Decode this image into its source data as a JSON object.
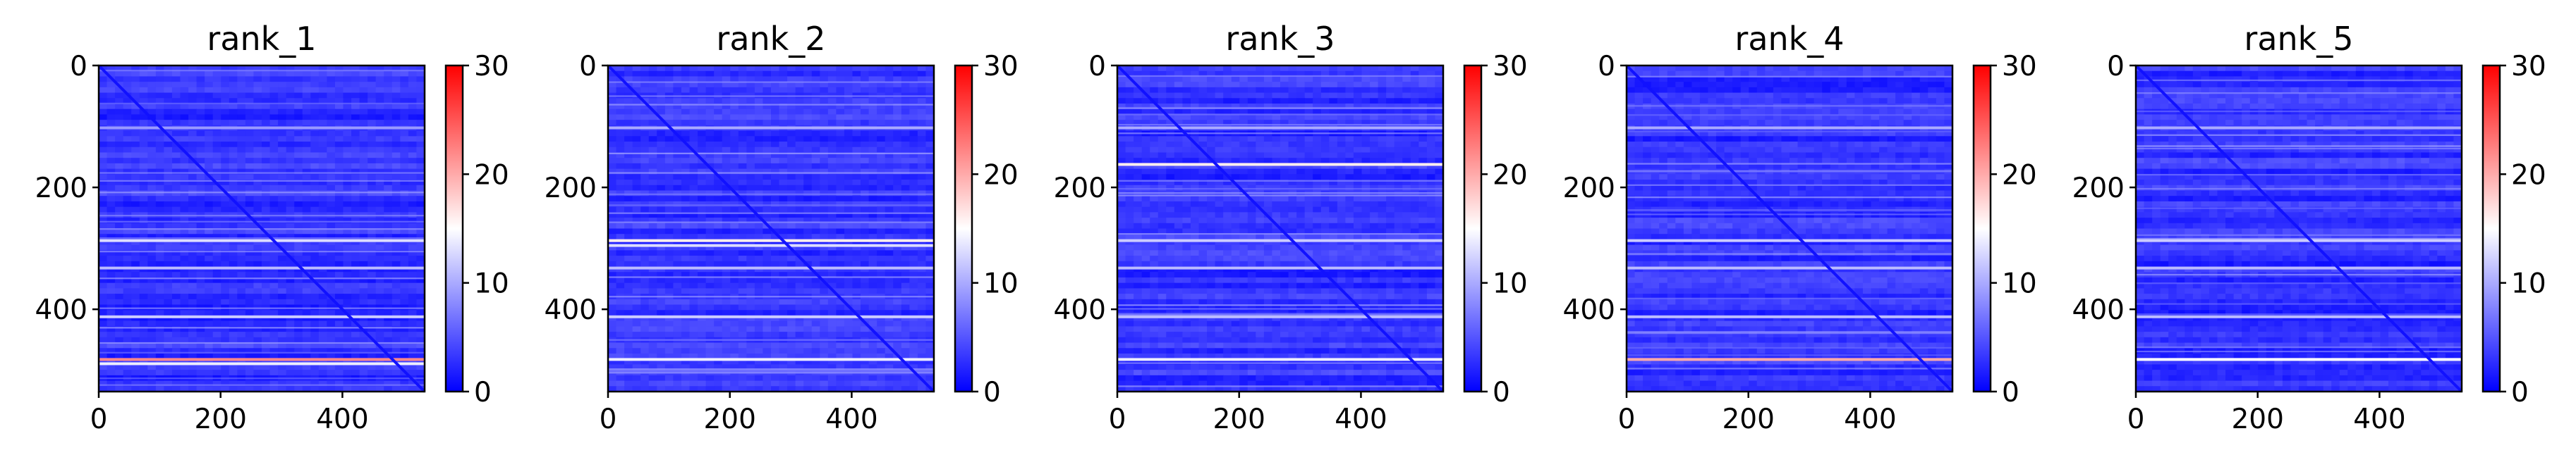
{
  "chart_data": [
    {
      "type": "heatmap",
      "title": "rank_1",
      "x_ticks": [
        0,
        200,
        400
      ],
      "y_ticks": [
        0,
        200,
        400
      ],
      "xlim": [
        0,
        535
      ],
      "ylim": [
        535,
        0
      ],
      "colorbar": {
        "ticks": [
          0,
          10,
          20,
          30
        ],
        "range": [
          0,
          30
        ],
        "colormap": "bwr"
      },
      "matrix_size": 535,
      "typical_value": 3,
      "diagonal_value": 1,
      "bright_rows": [
        {
          "y": 480,
          "value": 22
        },
        {
          "y": 487,
          "value": 14
        },
        {
          "y": 285,
          "value": 13
        },
        {
          "y": 100,
          "value": 9
        },
        {
          "y": 330,
          "value": 11
        },
        {
          "y": 410,
          "value": 12
        }
      ]
    },
    {
      "type": "heatmap",
      "title": "rank_2",
      "x_ticks": [
        0,
        200,
        400
      ],
      "y_ticks": [
        0,
        200,
        400
      ],
      "xlim": [
        0,
        535
      ],
      "ylim": [
        535,
        0
      ],
      "colorbar": {
        "ticks": [
          0,
          10,
          20,
          30
        ],
        "range": [
          0,
          30
        ],
        "colormap": "bwr"
      },
      "matrix_size": 535,
      "typical_value": 3,
      "diagonal_value": 1,
      "bright_rows": [
        {
          "y": 285,
          "value": 16
        },
        {
          "y": 293,
          "value": 13
        },
        {
          "y": 480,
          "value": 14
        },
        {
          "y": 100,
          "value": 10
        },
        {
          "y": 330,
          "value": 11
        },
        {
          "y": 410,
          "value": 12
        }
      ]
    },
    {
      "type": "heatmap",
      "title": "rank_3",
      "x_ticks": [
        0,
        200,
        400
      ],
      "y_ticks": [
        0,
        200,
        400
      ],
      "xlim": [
        0,
        535
      ],
      "ylim": [
        535,
        0
      ],
      "colorbar": {
        "ticks": [
          0,
          10,
          20,
          30
        ],
        "range": [
          0,
          30
        ],
        "colormap": "bwr"
      },
      "matrix_size": 535,
      "typical_value": 3,
      "diagonal_value": 1,
      "bright_rows": [
        {
          "y": 160,
          "value": 16
        },
        {
          "y": 480,
          "value": 14
        },
        {
          "y": 285,
          "value": 12
        },
        {
          "y": 100,
          "value": 10
        },
        {
          "y": 330,
          "value": 11
        },
        {
          "y": 410,
          "value": 11
        }
      ]
    },
    {
      "type": "heatmap",
      "title": "rank_4",
      "x_ticks": [
        0,
        200,
        400
      ],
      "y_ticks": [
        0,
        200,
        400
      ],
      "xlim": [
        0,
        535
      ],
      "ylim": [
        535,
        0
      ],
      "colorbar": {
        "ticks": [
          0,
          10,
          20,
          30
        ],
        "range": [
          0,
          30
        ],
        "colormap": "bwr"
      },
      "matrix_size": 535,
      "typical_value": 3,
      "diagonal_value": 1,
      "bright_rows": [
        {
          "y": 480,
          "value": 20
        },
        {
          "y": 285,
          "value": 12
        },
        {
          "y": 100,
          "value": 10
        },
        {
          "y": 330,
          "value": 11
        },
        {
          "y": 410,
          "value": 11
        }
      ]
    },
    {
      "type": "heatmap",
      "title": "rank_5",
      "x_ticks": [
        0,
        200,
        400
      ],
      "y_ticks": [
        0,
        200,
        400
      ],
      "xlim": [
        0,
        535
      ],
      "ylim": [
        535,
        0
      ],
      "colorbar": {
        "ticks": [
          0,
          10,
          20,
          30
        ],
        "range": [
          0,
          30
        ],
        "colormap": "bwr"
      },
      "matrix_size": 535,
      "typical_value": 3,
      "diagonal_value": 1,
      "bright_rows": [
        {
          "y": 480,
          "value": 15
        },
        {
          "y": 285,
          "value": 12
        },
        {
          "y": 100,
          "value": 10
        },
        {
          "y": 330,
          "value": 11
        },
        {
          "y": 410,
          "value": 11
        }
      ]
    }
  ]
}
